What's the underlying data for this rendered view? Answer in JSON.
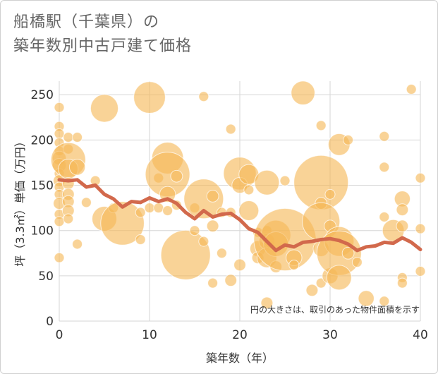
{
  "chart_data": {
    "type": "scatter",
    "title_lines": [
      "船橋駅（千葉県）の",
      "築年数別中古戸建て価格"
    ],
    "xlabel": "築年数（年）",
    "ylabel": "坪（3.3㎡）単価（万円）",
    "xlim": [
      0,
      40
    ],
    "ylim": [
      0,
      265
    ],
    "xticks": [
      0,
      10,
      20,
      30,
      40
    ],
    "yticks": [
      0,
      50,
      100,
      150,
      200,
      250
    ],
    "grid": true,
    "note": "円の大きさは、取引のあった物件面積を示す",
    "colors": {
      "bubble": "#f5b857",
      "line": "#d2694c"
    },
    "bubbles": [
      {
        "x": 0,
        "y": 236,
        "s": 1
      },
      {
        "x": 0,
        "y": 215,
        "s": 1
      },
      {
        "x": 0,
        "y": 207,
        "s": 1
      },
      {
        "x": 0,
        "y": 197,
        "s": 1
      },
      {
        "x": 0,
        "y": 188,
        "s": 1
      },
      {
        "x": 0,
        "y": 180,
        "s": 1.4
      },
      {
        "x": 0,
        "y": 172,
        "s": 1.4
      },
      {
        "x": 0,
        "y": 163,
        "s": 1
      },
      {
        "x": 0,
        "y": 155,
        "s": 1.2
      },
      {
        "x": 0,
        "y": 148,
        "s": 1
      },
      {
        "x": 0,
        "y": 140,
        "s": 1
      },
      {
        "x": 0,
        "y": 130,
        "s": 1.2
      },
      {
        "x": 0,
        "y": 118,
        "s": 1
      },
      {
        "x": 0,
        "y": 110,
        "s": 1
      },
      {
        "x": 0,
        "y": 70,
        "s": 1
      },
      {
        "x": 1,
        "y": 203,
        "s": 1
      },
      {
        "x": 1,
        "y": 190,
        "s": 1
      },
      {
        "x": 1,
        "y": 178,
        "s": 3.5
      },
      {
        "x": 1,
        "y": 168,
        "s": 2
      },
      {
        "x": 1,
        "y": 152,
        "s": 1.2
      },
      {
        "x": 1,
        "y": 140,
        "s": 1.2
      },
      {
        "x": 1,
        "y": 132,
        "s": 1.2
      },
      {
        "x": 1,
        "y": 122,
        "s": 1.2
      },
      {
        "x": 1,
        "y": 113,
        "s": 1
      },
      {
        "x": 2,
        "y": 203,
        "s": 1
      },
      {
        "x": 2,
        "y": 170,
        "s": 1.6
      },
      {
        "x": 2,
        "y": 85,
        "s": 1
      },
      {
        "x": 3,
        "y": 131,
        "s": 1
      },
      {
        "x": 4,
        "y": 155,
        "s": 1
      },
      {
        "x": 5,
        "y": 235,
        "s": 2.8
      },
      {
        "x": 5,
        "y": 113,
        "s": 2.5
      },
      {
        "x": 6,
        "y": 125,
        "s": 1
      },
      {
        "x": 7,
        "y": 108,
        "s": 4.4
      },
      {
        "x": 9,
        "y": 120,
        "s": 1
      },
      {
        "x": 9,
        "y": 90,
        "s": 1
      },
      {
        "x": 10,
        "y": 247,
        "s": 3.2
      },
      {
        "x": 10,
        "y": 125,
        "s": 1
      },
      {
        "x": 11,
        "y": 158,
        "s": 1
      },
      {
        "x": 11,
        "y": 125,
        "s": 1
      },
      {
        "x": 12,
        "y": 180,
        "s": 3.2
      },
      {
        "x": 12,
        "y": 162,
        "s": 4.5
      },
      {
        "x": 12,
        "y": 140,
        "s": 1.6
      },
      {
        "x": 12,
        "y": 122,
        "s": 1
      },
      {
        "x": 13,
        "y": 160,
        "s": 1.2
      },
      {
        "x": 13,
        "y": 128,
        "s": 1
      },
      {
        "x": 14,
        "y": 73,
        "s": 5
      },
      {
        "x": 15,
        "y": 125,
        "s": 1
      },
      {
        "x": 15,
        "y": 100,
        "s": 1
      },
      {
        "x": 16,
        "y": 248,
        "s": 1
      },
      {
        "x": 16,
        "y": 135,
        "s": 4
      },
      {
        "x": 16,
        "y": 88,
        "s": 1
      },
      {
        "x": 17,
        "y": 138,
        "s": 1.2
      },
      {
        "x": 17,
        "y": 105,
        "s": 1.2
      },
      {
        "x": 17,
        "y": 42,
        "s": 1
      },
      {
        "x": 18,
        "y": 120,
        "s": 1
      },
      {
        "x": 18,
        "y": 75,
        "s": 1
      },
      {
        "x": 19,
        "y": 212,
        "s": 1
      },
      {
        "x": 19,
        "y": 120,
        "s": 1
      },
      {
        "x": 19,
        "y": 45,
        "s": 1.2
      },
      {
        "x": 20,
        "y": 163,
        "s": 3.3
      },
      {
        "x": 20,
        "y": 150,
        "s": 1.6
      },
      {
        "x": 20,
        "y": 62,
        "s": 1.2
      },
      {
        "x": 21,
        "y": 162,
        "s": 2
      },
      {
        "x": 21,
        "y": 145,
        "s": 1
      },
      {
        "x": 21,
        "y": 122,
        "s": 2
      },
      {
        "x": 22,
        "y": 98,
        "s": 1
      },
      {
        "x": 22,
        "y": 80,
        "s": 1.6
      },
      {
        "x": 22,
        "y": 70,
        "s": 1.2
      },
      {
        "x": 23,
        "y": 153,
        "s": 2.5
      },
      {
        "x": 23,
        "y": 100,
        "s": 1
      },
      {
        "x": 23,
        "y": 88,
        "s": 1.6
      },
      {
        "x": 23,
        "y": 70,
        "s": 2
      },
      {
        "x": 23,
        "y": 20,
        "s": 1.2
      },
      {
        "x": 24,
        "y": 95,
        "s": 3
      },
      {
        "x": 24,
        "y": 85,
        "s": 2.5
      },
      {
        "x": 24,
        "y": 60,
        "s": 1.2
      },
      {
        "x": 25,
        "y": 155,
        "s": 1
      },
      {
        "x": 25,
        "y": 90,
        "s": 6.3
      },
      {
        "x": 26,
        "y": 70,
        "s": 1.6
      },
      {
        "x": 26,
        "y": 62,
        "s": 1
      },
      {
        "x": 27,
        "y": 252,
        "s": 2.4
      },
      {
        "x": 28,
        "y": 34,
        "s": 1.2
      },
      {
        "x": 29,
        "y": 216,
        "s": 1
      },
      {
        "x": 29,
        "y": 153,
        "s": 5.5
      },
      {
        "x": 29,
        "y": 130,
        "s": 1.2
      },
      {
        "x": 29,
        "y": 110,
        "s": 3.8
      },
      {
        "x": 29,
        "y": 80,
        "s": 1.6
      },
      {
        "x": 29,
        "y": 42,
        "s": 1
      },
      {
        "x": 30,
        "y": 140,
        "s": 1
      },
      {
        "x": 30,
        "y": 105,
        "s": 1.2
      },
      {
        "x": 30,
        "y": 50,
        "s": 1.6
      },
      {
        "x": 31,
        "y": 195,
        "s": 2.2
      },
      {
        "x": 31,
        "y": 88,
        "s": 3
      },
      {
        "x": 31,
        "y": 75,
        "s": 4.5
      },
      {
        "x": 31,
        "y": 48,
        "s": 2.5
      },
      {
        "x": 32,
        "y": 200,
        "s": 1
      },
      {
        "x": 32,
        "y": 75,
        "s": 1.2
      },
      {
        "x": 33,
        "y": 65,
        "s": 1
      },
      {
        "x": 34,
        "y": 25,
        "s": 1.6
      },
      {
        "x": 36,
        "y": 204,
        "s": 1
      },
      {
        "x": 36,
        "y": 170,
        "s": 1
      },
      {
        "x": 36,
        "y": 115,
        "s": 1
      },
      {
        "x": 36,
        "y": 22,
        "s": 1
      },
      {
        "x": 37,
        "y": 100,
        "s": 2.2
      },
      {
        "x": 38,
        "y": 135,
        "s": 1.6
      },
      {
        "x": 38,
        "y": 123,
        "s": 1.2
      },
      {
        "x": 38,
        "y": 105,
        "s": 1.2
      },
      {
        "x": 38,
        "y": 48,
        "s": 1
      },
      {
        "x": 38,
        "y": 42,
        "s": 1
      },
      {
        "x": 39,
        "y": 256,
        "s": 1
      },
      {
        "x": 40,
        "y": 158,
        "s": 1
      },
      {
        "x": 40,
        "y": 102,
        "s": 1
      },
      {
        "x": 40,
        "y": 55,
        "s": 1
      }
    ],
    "trend": {
      "x": [
        0,
        1,
        2,
        3,
        4,
        5,
        6,
        7,
        8,
        9,
        10,
        11,
        12,
        13,
        14,
        15,
        16,
        17,
        18,
        19,
        20,
        21,
        22,
        23,
        24,
        25,
        26,
        27,
        28,
        29,
        30,
        31,
        32,
        33,
        34,
        35,
        36,
        37,
        38,
        39,
        40
      ],
      "y": [
        156,
        155,
        156,
        148,
        150,
        140,
        135,
        126,
        132,
        131,
        136,
        132,
        135,
        130,
        120,
        113,
        122,
        115,
        118,
        119,
        112,
        102,
        98,
        88,
        78,
        84,
        82,
        87,
        88,
        90,
        91,
        89,
        85,
        78,
        82,
        83,
        87,
        86,
        92,
        87,
        79
      ]
    }
  }
}
